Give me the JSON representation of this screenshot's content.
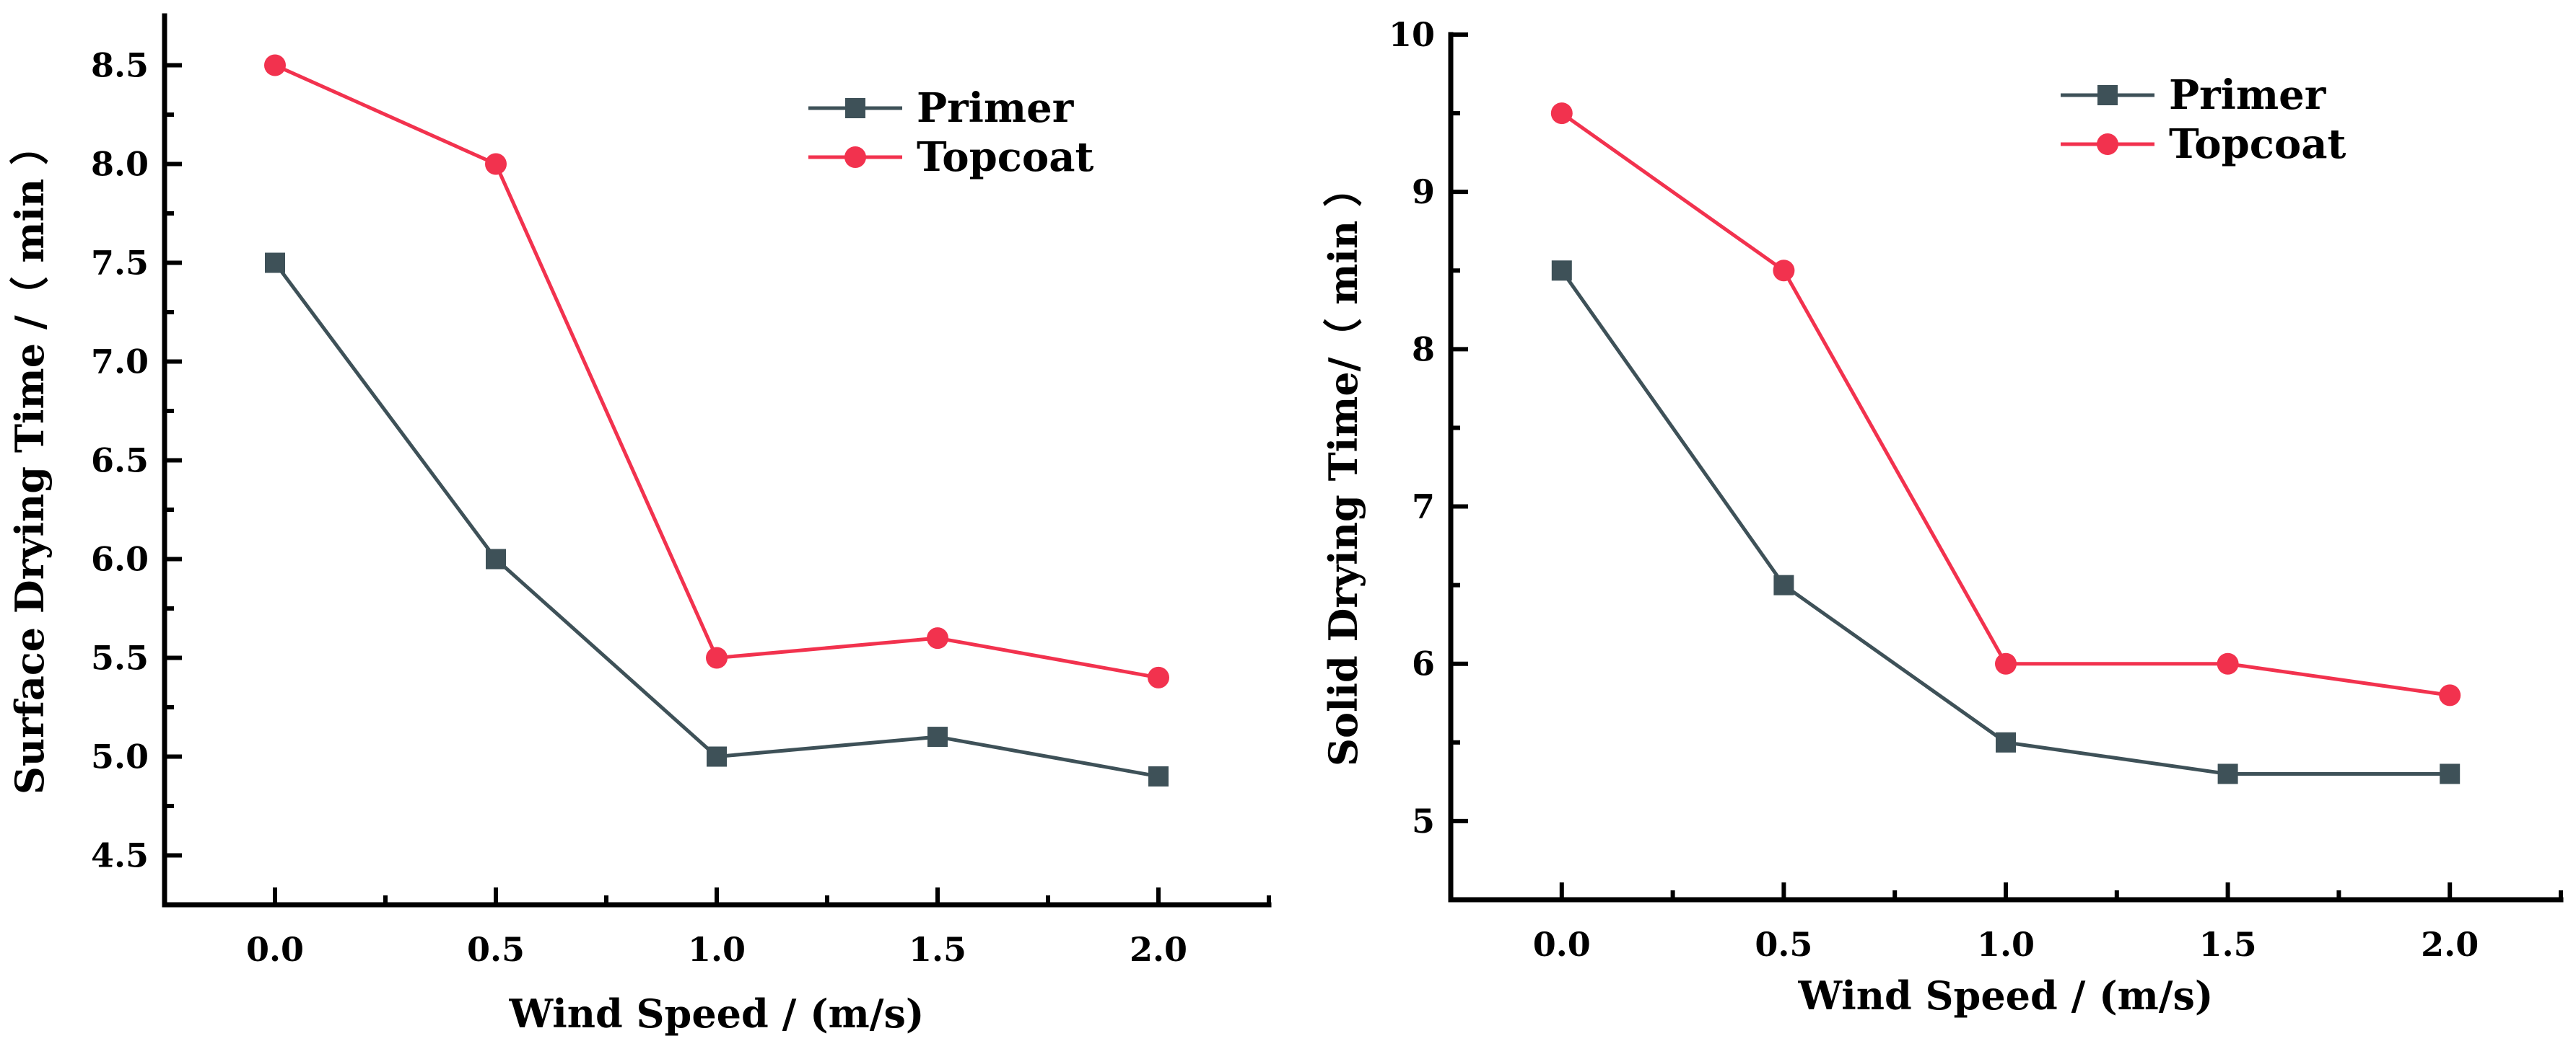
{
  "colors": {
    "primer": "#3e5158",
    "topcoat": "#f2324e",
    "axis": "#000000"
  },
  "chart_data": [
    {
      "type": "line",
      "xlabel": "Wind Speed / (m/s)",
      "ylabel": "Surface Drying Time /（ min ）",
      "x": [
        0.0,
        0.5,
        1.0,
        1.5,
        2.0
      ],
      "x_tick_labels": [
        "0.0",
        "0.5",
        "1.0",
        "1.5",
        "2.0"
      ],
      "xlim": [
        -0.25,
        2.25
      ],
      "ylim": [
        4.25,
        8.75
      ],
      "y_ticks": [
        4.5,
        5.0,
        5.5,
        6.0,
        6.5,
        7.0,
        7.5,
        8.0,
        8.5
      ],
      "y_tick_labels": [
        "4.5",
        "5.0",
        "5.5",
        "6.0",
        "6.5",
        "7.0",
        "7.5",
        "8.0",
        "8.5"
      ],
      "grid": false,
      "legend_position": "top-right",
      "series": [
        {
          "name": "Primer",
          "marker": "square",
          "color": "#3e5158",
          "values": [
            7.5,
            6.0,
            5.0,
            5.1,
            4.9
          ]
        },
        {
          "name": "Topcoat",
          "marker": "circle",
          "color": "#f2324e",
          "values": [
            8.5,
            8.0,
            5.5,
            5.6,
            5.4
          ]
        }
      ]
    },
    {
      "type": "line",
      "xlabel": "Wind Speed / (m/s)",
      "ylabel": "Solid Drying Time/（ min ）",
      "x": [
        0.0,
        0.5,
        1.0,
        1.5,
        2.0
      ],
      "x_tick_labels": [
        "0.0",
        "0.5",
        "1.0",
        "1.5",
        "2.0"
      ],
      "xlim": [
        -0.25,
        2.25
      ],
      "ylim": [
        4.5,
        10.0
      ],
      "y_ticks": [
        5,
        6,
        7,
        8,
        9,
        10
      ],
      "y_tick_labels": [
        "5",
        "6",
        "7",
        "8",
        "9",
        "10"
      ],
      "grid": false,
      "legend_position": "top-right",
      "series": [
        {
          "name": "Primer",
          "marker": "square",
          "color": "#3e5158",
          "values": [
            8.5,
            6.5,
            5.5,
            5.3,
            5.3
          ]
        },
        {
          "name": "Topcoat",
          "marker": "circle",
          "color": "#f2324e",
          "values": [
            9.5,
            8.5,
            6.0,
            6.0,
            5.8
          ]
        }
      ]
    }
  ]
}
